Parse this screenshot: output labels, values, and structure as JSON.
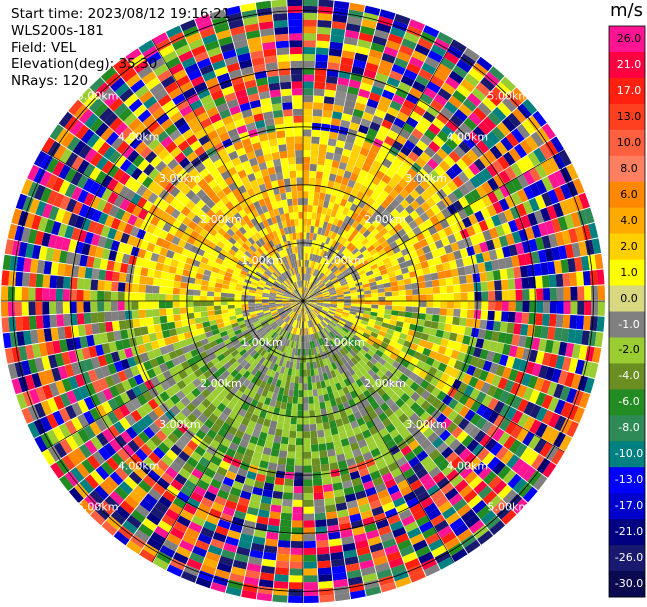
{
  "header": {
    "start_time": "Start time: 2023/08/12 19:16:21",
    "instrument": "WLS200s-181",
    "field": "Field: VEL",
    "elevation": "Elevation(deg): 35.30",
    "nrays": "NRays: 120"
  },
  "colorbar": {
    "unit": "m/s",
    "ticks": [
      "26.0",
      "21.0",
      "17.0",
      "13.0",
      "10.0",
      "8.0",
      "6.0",
      "4.0",
      "2.0",
      "1.0",
      "0.0",
      "-1.0",
      "-2.0",
      "-4.0",
      "-6.0",
      "-8.0",
      "-10.0",
      "-13.0",
      "-17.0",
      "-21.0",
      "-26.0",
      "-30.0"
    ],
    "colors": [
      "#ff1493",
      "#ff0040",
      "#ff2010",
      "#ff4020",
      "#ff6040",
      "#ff8060",
      "#ff8800",
      "#ffaa00",
      "#ffd000",
      "#ffff00",
      "#d8d880",
      "#808080",
      "#9acd32",
      "#6b8e23",
      "#228b22",
      "#2e8b57",
      "#008080",
      "#0000ff",
      "#0000cd",
      "#000080",
      "#191970",
      "#0a0a50"
    ]
  },
  "chart_data": {
    "type": "heatmap",
    "title": "",
    "field": "VEL",
    "units": "m/s",
    "rays": 120,
    "elevation_deg": 35.3,
    "range_ring_labels": [
      "1.00km",
      "2.00km",
      "3.00km",
      "4.00km",
      "5.00km"
    ],
    "range_ring_labels_display": [
      "1.00km",
      "2.00km",
      "3.00km",
      "4.00km",
      "5.00km"
    ],
    "rings_km": [
      1,
      2,
      3,
      4,
      5
    ],
    "max_range_km": 5.2,
    "color_levels": [
      -30,
      -26,
      -21,
      -17,
      -13,
      -10,
      -8,
      -6,
      -4,
      -2,
      -1,
      0,
      1,
      2,
      4,
      6,
      8,
      10,
      13,
      17,
      21,
      26
    ],
    "inner_pattern": "near-zero velocities (grey/yellow) within 1 km",
    "mid_pattern": "yellow/orange (+1 to +6 m/s) to the north, green (-2 to -6 m/s) to the south between 1 and 3 km",
    "outer_pattern": "noisy multicolor values beyond 3 km"
  }
}
